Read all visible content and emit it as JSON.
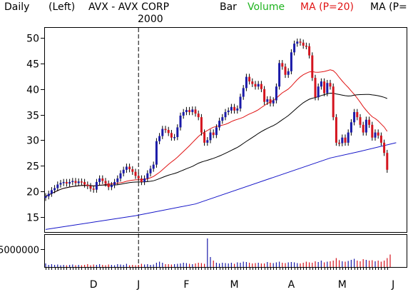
{
  "header": {
    "period": "Daily",
    "scale": "(Left)",
    "title": "AVX - AVX CORP",
    "year": "2000",
    "style": "Bar",
    "volume": "Volume",
    "ma20": "MA (P=20)",
    "ma_other": "MA (P="
  },
  "colors": {
    "up": "#1a1aa8",
    "down": "#d4141e",
    "ma20": "#e01414",
    "ma50": "#000000",
    "ma200": "#1414c8",
    "volume_label": "#1eb41e",
    "ma_label": "#e01414",
    "grid": "#000000"
  },
  "chart_data": {
    "type": "bar",
    "price_axis": {
      "ticks": [
        15,
        20,
        25,
        30,
        35,
        40,
        45,
        50
      ],
      "range": [
        12,
        52
      ]
    },
    "volume_axis": {
      "ticks": [
        5000000
      ],
      "tick_labels": [
        "5000000"
      ],
      "range": [
        0,
        9000000
      ]
    },
    "x_labels": [
      "D",
      "J",
      "F",
      "M",
      "A",
      "M",
      "J"
    ],
    "x_label_days": [
      16,
      31,
      47,
      63,
      82,
      99,
      116
    ],
    "period_divider_day": 31,
    "prices": [
      19,
      19.5,
      20.2,
      20.6,
      21.3,
      21.6,
      21.8,
      21.5,
      21.8,
      22,
      21.6,
      21.9,
      21.8,
      21.3,
      21,
      20.5,
      20.3,
      21.8,
      22.5,
      22,
      21.5,
      20.8,
      21.2,
      21.8,
      22.5,
      23.5,
      24.2,
      24.8,
      24.3,
      23.8,
      23,
      22.5,
      21.8,
      22.5,
      23.5,
      24.4,
      25.2,
      29.8,
      30.8,
      32.2,
      32,
      31.4,
      30.5,
      30.6,
      32.5,
      34.8,
      35.5,
      35.9,
      35.5,
      36,
      35.2,
      34.5,
      31.5,
      29.5,
      30,
      31.5,
      31,
      32.5,
      33.8,
      34.5,
      35.5,
      35.8,
      36.5,
      35.8,
      36.2,
      38.5,
      40.2,
      42.4,
      41.5,
      41,
      40.5,
      41,
      40,
      37.5,
      38,
      37.2,
      37.8,
      40.5,
      45.1,
      44.4,
      42.8,
      43.5,
      47.2,
      48.9,
      49.3,
      49.1,
      48.5,
      48.4,
      46.6,
      42.2,
      38.4,
      40.5,
      41.5,
      39.2,
      41.2,
      40.5,
      34.5,
      29.5,
      29.4,
      30.5,
      29.5,
      31.5,
      33.5,
      35.5,
      34.5,
      33,
      31.5,
      34,
      33,
      30.5,
      31.5,
      30.9,
      29.5,
      27.5,
      24.2
    ],
    "volumes": [
      1.0,
      0.6,
      0.8,
      0.6,
      0.7,
      0.5,
      0.6,
      0.5,
      0.6,
      0.7,
      0.5,
      0.6,
      0.5,
      0.6,
      0.8,
      0.5,
      0.7,
      0.6,
      0.8,
      0.6,
      0.5,
      0.7,
      0.6,
      0.5,
      0.8,
      0.7,
      0.6,
      0.9,
      0.5,
      0.6,
      0.5,
      0.6,
      0.9,
      0.7,
      0.8,
      0.6,
      0.7,
      1.2,
      1.5,
      1.2,
      0.8,
      0.8,
      0.7,
      0.8,
      0.9,
      1.0,
      1.2,
      1.1,
      0.9,
      0.8,
      1.0,
      1.2,
      1.1,
      0.9,
      8.0,
      2.8,
      1.8,
      1.2,
      1.0,
      1.2,
      1.1,
      1.0,
      1.2,
      0.9,
      1.3,
      1.2,
      1.5,
      1.4,
      1.2,
      1.0,
      1.1,
      1.2,
      1.0,
      1.0,
      1.4,
      1.2,
      1.1,
      1.3,
      1.5,
      1.2,
      1.1,
      1.3,
      1.4,
      1.3,
      1.1,
      1.0,
      1.2,
      1.5,
      1.3,
      1.2,
      1.6,
      1.4,
      1.8,
      1.3,
      1.5,
      1.6,
      1.8,
      2.5,
      1.9,
      1.6,
      1.5,
      1.7,
      2.0,
      2.3,
      1.8,
      1.6,
      2.2,
      2.0,
      1.8,
      1.9,
      1.6,
      1.8,
      1.5,
      1.8,
      2.5,
      3.5
    ],
    "volume_unit": 1000000,
    "moving_averages": [
      {
        "period": 20
      },
      {
        "period": 50
      },
      {
        "period": 200,
        "points": [
          [
            0,
            12.5
          ],
          [
            30,
            15.2
          ],
          [
            50,
            17.5
          ],
          [
            75,
            22.5
          ],
          [
            95,
            26.5
          ],
          [
            105,
            27.8
          ],
          [
            117,
            29.5
          ]
        ]
      }
    ]
  }
}
